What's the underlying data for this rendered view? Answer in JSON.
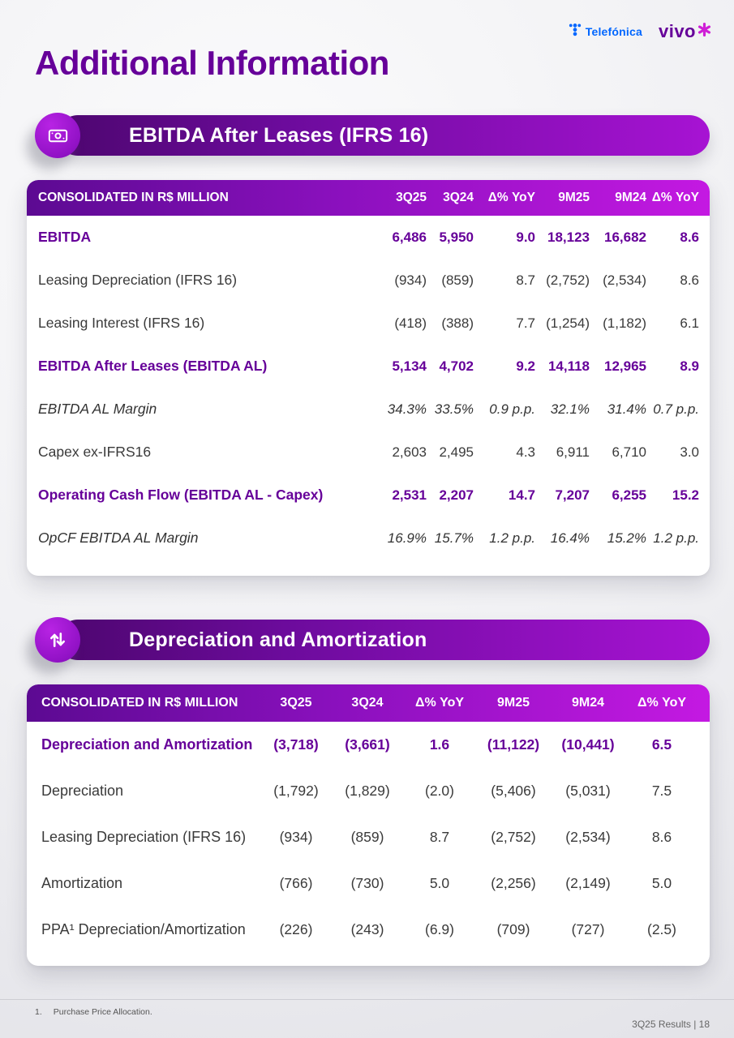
{
  "page": {
    "title": "Additional Information",
    "footnote_number": "1.",
    "footnote_text": "Purchase Price Allocation.",
    "footer_right": "3Q25 Results | 18"
  },
  "brand": {
    "telefonica": "Telefónica",
    "vivo": "vivo"
  },
  "colors": {
    "brand_purple": "#660099",
    "magenta_accent": "#c419e2",
    "telefonica_blue": "#0066ff"
  },
  "sections": [
    {
      "title": "EBITDA After Leases (IFRS 16)",
      "icon": "money-hand-icon",
      "table": {
        "header": [
          "CONSOLIDATED IN R$ MILLION",
          "3Q25",
          "3Q24",
          "Δ% YoY",
          "9M25",
          "9M24",
          "Δ% YoY"
        ],
        "rows": [
          {
            "label": "EBITDA",
            "style": "bold",
            "values": [
              "6,486",
              "5,950",
              "9.0",
              "18,123",
              "16,682",
              "8.6"
            ]
          },
          {
            "label": "Leasing Depreciation (IFRS 16)",
            "style": "normal",
            "values": [
              "(934)",
              "(859)",
              "8.7",
              "(2,752)",
              "(2,534)",
              "8.6"
            ]
          },
          {
            "label": "Leasing Interest (IFRS 16)",
            "style": "normal",
            "values": [
              "(418)",
              "(388)",
              "7.7",
              "(1,254)",
              "(1,182)",
              "6.1"
            ]
          },
          {
            "label": "EBITDA After Leases (EBITDA AL)",
            "style": "bold",
            "values": [
              "5,134",
              "4,702",
              "9.2",
              "14,118",
              "12,965",
              "8.9"
            ]
          },
          {
            "label": "EBITDA AL Margin",
            "style": "italic",
            "values": [
              "34.3%",
              "33.5%",
              "0.9 p.p.",
              "32.1%",
              "31.4%",
              "0.7 p.p."
            ]
          },
          {
            "label": "Capex ex-IFRS16",
            "style": "normal",
            "values": [
              "2,603",
              "2,495",
              "4.3",
              "6,911",
              "6,710",
              "3.0"
            ]
          },
          {
            "label": "Operating Cash Flow (EBITDA AL - Capex)",
            "style": "bold",
            "values": [
              "2,531",
              "2,207",
              "14.7",
              "7,207",
              "6,255",
              "15.2"
            ]
          },
          {
            "label": "OpCF EBITDA AL Margin",
            "style": "italic",
            "values": [
              "16.9%",
              "15.7%",
              "1.2 p.p.",
              "16.4%",
              "15.2%",
              "1.2 p.p."
            ]
          }
        ]
      }
    },
    {
      "title": "Depreciation and Amortization",
      "icon": "arrows-up-down-icon",
      "table": {
        "header": [
          "CONSOLIDATED IN R$ MILLION",
          "3Q25",
          "3Q24",
          "Δ% YoY",
          "9M25",
          "9M24",
          "Δ% YoY"
        ],
        "rows": [
          {
            "label": "Depreciation and Amortization",
            "style": "bold",
            "values": [
              "(3,718)",
              "(3,661)",
              "1.6",
              "(11,122)",
              "(10,441)",
              "6.5"
            ]
          },
          {
            "label": "Depreciation",
            "style": "normal",
            "values": [
              "(1,792)",
              "(1,829)",
              "(2.0)",
              "(5,406)",
              "(5,031)",
              "7.5"
            ]
          },
          {
            "label": "Leasing Depreciation (IFRS 16)",
            "style": "normal",
            "values": [
              "(934)",
              "(859)",
              "8.7",
              "(2,752)",
              "(2,534)",
              "8.6"
            ]
          },
          {
            "label": "Amortization",
            "style": "normal",
            "values": [
              "(766)",
              "(730)",
              "5.0",
              "(2,256)",
              "(2,149)",
              "5.0"
            ]
          },
          {
            "label": "PPA¹ Depreciation/Amortization",
            "style": "normal",
            "values": [
              "(226)",
              "(243)",
              "(6.9)",
              "(709)",
              "(727)",
              "(2.5)"
            ]
          }
        ]
      }
    }
  ]
}
